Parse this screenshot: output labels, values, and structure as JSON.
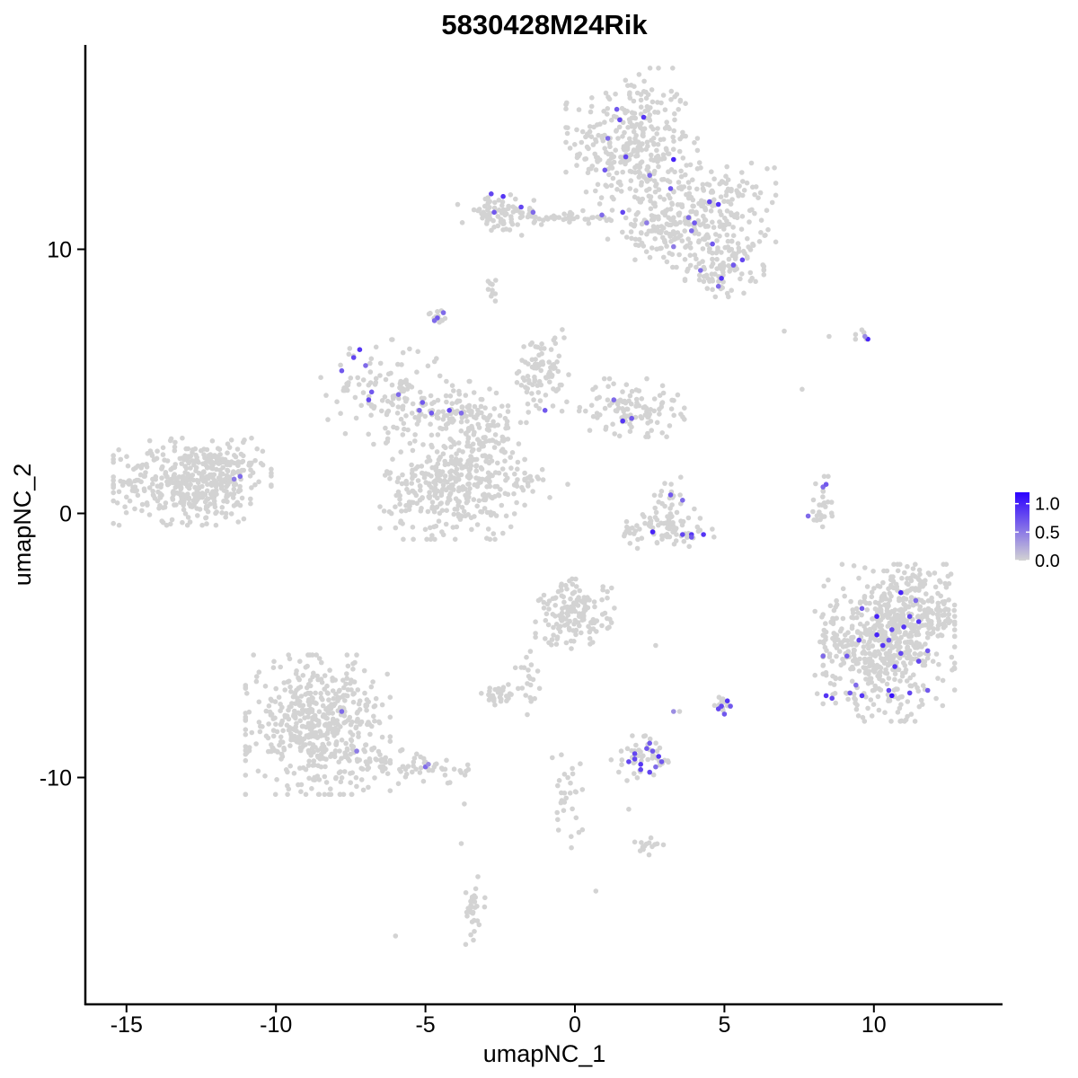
{
  "chart_data": {
    "type": "scatter",
    "title": "5830428M24Rik",
    "xlabel": "umapNC_1",
    "ylabel": "umapNC_2",
    "xlim": [
      -16.5,
      14.5
    ],
    "ylim": [
      -18.5,
      17.8
    ],
    "x_ticks": [
      -15,
      -10,
      -5,
      0,
      5,
      10
    ],
    "y_ticks": [
      -10,
      0,
      10
    ],
    "x_tick_labels": [
      "-15",
      "-10",
      "-5",
      "0",
      "5",
      "10"
    ],
    "y_tick_labels": [
      "-10",
      "0",
      "10"
    ],
    "grid": false,
    "color_scale": {
      "low_color": "#d3d3d3",
      "high_color": "#2b00ff",
      "min": 0.0,
      "max": 1.2,
      "ticks": [
        0.0,
        0.5,
        1.0
      ],
      "tick_labels": [
        "0.0",
        "0.5",
        "1.0"
      ],
      "legend_position": "right"
    },
    "clusters": [
      {
        "cx": 1.9,
        "cy": 14.0,
        "sx": 1.0,
        "sy": 1.3,
        "n": 320
      },
      {
        "cx": 4.3,
        "cy": 11.3,
        "sx": 1.1,
        "sy": 0.9,
        "n": 260
      },
      {
        "cx": 5.0,
        "cy": 9.3,
        "sx": 0.6,
        "sy": 0.5,
        "n": 90
      },
      {
        "cx": -2.6,
        "cy": 11.3,
        "sx": 0.6,
        "sy": 0.35,
        "n": 70
      },
      {
        "cx": -0.5,
        "cy": 11.2,
        "sx": 0.9,
        "sy": 0.12,
        "n": 45
      },
      {
        "cx": 2.6,
        "cy": 10.6,
        "sx": 0.7,
        "sy": 0.5,
        "n": 60
      },
      {
        "cx": -2.8,
        "cy": 8.7,
        "sx": 0.15,
        "sy": 0.3,
        "n": 10
      },
      {
        "cx": -4.6,
        "cy": 7.4,
        "sx": 0.15,
        "sy": 0.15,
        "n": 14
      },
      {
        "cx": -12.8,
        "cy": 1.2,
        "sx": 1.2,
        "sy": 0.75,
        "n": 420
      },
      {
        "cx": -11.6,
        "cy": 1.9,
        "sx": 0.5,
        "sy": 0.4,
        "n": 60
      },
      {
        "cx": -6.3,
        "cy": 4.6,
        "sx": 1.0,
        "sy": 0.9,
        "n": 120
      },
      {
        "cx": -4.0,
        "cy": 3.9,
        "sx": 0.8,
        "sy": 0.5,
        "n": 80
      },
      {
        "cx": -1.1,
        "cy": 5.2,
        "sx": 0.45,
        "sy": 0.8,
        "n": 90
      },
      {
        "cx": 1.9,
        "cy": 4.0,
        "sx": 0.8,
        "sy": 0.5,
        "n": 110
      },
      {
        "cx": -3.2,
        "cy": 3.0,
        "sx": 0.6,
        "sy": 0.6,
        "n": 90
      },
      {
        "cx": -4.1,
        "cy": 1.0,
        "sx": 1.1,
        "sy": 0.9,
        "n": 350
      },
      {
        "cx": -1.6,
        "cy": 1.2,
        "sx": 0.8,
        "sy": 0.3,
        "n": 25
      },
      {
        "cx": 3.0,
        "cy": -0.6,
        "sx": 0.75,
        "sy": 0.35,
        "n": 80
      },
      {
        "cx": 3.1,
        "cy": 0.5,
        "sx": 0.2,
        "sy": 0.4,
        "n": 25
      },
      {
        "cx": 8.2,
        "cy": 0.3,
        "sx": 0.2,
        "sy": 0.5,
        "n": 25
      },
      {
        "cx": 10.5,
        "cy": -4.9,
        "sx": 1.0,
        "sy": 1.35,
        "n": 520
      },
      {
        "cx": 8.8,
        "cy": -5.2,
        "sx": 0.35,
        "sy": 0.9,
        "n": 70
      },
      {
        "cx": 11.6,
        "cy": -3.8,
        "sx": 0.6,
        "sy": 0.7,
        "n": 120
      },
      {
        "cx": -8.6,
        "cy": -8.0,
        "sx": 1.1,
        "sy": 1.2,
        "n": 520
      },
      {
        "cx": -5.5,
        "cy": -9.6,
        "sx": 1.0,
        "sy": 0.35,
        "n": 70
      },
      {
        "cx": 0.0,
        "cy": -3.8,
        "sx": 0.6,
        "sy": 0.6,
        "n": 160
      },
      {
        "cx": -1.6,
        "cy": -6.3,
        "sx": 0.2,
        "sy": 0.6,
        "n": 20
      },
      {
        "cx": -2.5,
        "cy": -6.9,
        "sx": 0.3,
        "sy": 0.2,
        "n": 30
      },
      {
        "cx": 2.2,
        "cy": -9.3,
        "sx": 0.45,
        "sy": 0.4,
        "n": 45
      },
      {
        "cx": 5.0,
        "cy": -7.2,
        "sx": 0.15,
        "sy": 0.15,
        "n": 10
      },
      {
        "cx": -0.3,
        "cy": -10.9,
        "sx": 0.25,
        "sy": 0.8,
        "n": 30
      },
      {
        "cx": 2.3,
        "cy": -12.6,
        "sx": 0.3,
        "sy": 0.15,
        "n": 15
      },
      {
        "cx": -3.4,
        "cy": -15.0,
        "sx": 0.2,
        "sy": 0.6,
        "n": 30
      },
      {
        "cx": 9.6,
        "cy": 6.7,
        "sx": 0.15,
        "sy": 0.15,
        "n": 5
      }
    ],
    "singletons": [
      [
        7.0,
        6.9
      ],
      [
        8.5,
        6.7
      ],
      [
        7.6,
        4.7
      ],
      [
        -3.8,
        -12.5
      ],
      [
        -6.0,
        -16.0
      ],
      [
        0.7,
        -14.3
      ],
      [
        1.8,
        -11.2
      ],
      [
        -3.7,
        -11.0
      ],
      [
        2.7,
        -5.0
      ],
      [
        3.5,
        -7.5
      ]
    ],
    "expressing_points": [
      [
        1.4,
        15.3,
        0.7
      ],
      [
        1.5,
        14.9,
        0.8
      ],
      [
        1.1,
        14.2,
        0.6
      ],
      [
        2.3,
        15.0,
        0.9
      ],
      [
        1.7,
        13.5,
        0.8
      ],
      [
        3.3,
        13.4,
        1.0
      ],
      [
        1.0,
        13.0,
        0.7
      ],
      [
        2.5,
        12.8,
        0.6
      ],
      [
        3.2,
        12.3,
        0.7
      ],
      [
        4.5,
        11.8,
        0.8
      ],
      [
        4.8,
        11.7,
        0.9
      ],
      [
        3.8,
        11.2,
        0.6
      ],
      [
        4.0,
        11.0,
        0.7
      ],
      [
        0.9,
        11.3,
        0.6
      ],
      [
        1.6,
        11.4,
        0.8
      ],
      [
        2.4,
        11.0,
        0.5
      ],
      [
        4.6,
        10.2,
        0.7
      ],
      [
        5.6,
        9.6,
        0.8
      ],
      [
        5.3,
        9.4,
        0.7
      ],
      [
        4.9,
        8.9,
        0.9
      ],
      [
        4.8,
        8.6,
        0.6
      ],
      [
        4.2,
        9.2,
        0.6
      ],
      [
        3.3,
        10.1,
        0.5
      ],
      [
        3.9,
        10.7,
        0.6
      ],
      [
        -2.8,
        12.1,
        0.8
      ],
      [
        -2.4,
        12.0,
        0.9
      ],
      [
        -2.7,
        11.4,
        0.7
      ],
      [
        -1.8,
        11.6,
        0.8
      ],
      [
        -1.4,
        11.4,
        0.6
      ],
      [
        -4.6,
        7.4,
        0.7
      ],
      [
        -4.4,
        7.6,
        0.6
      ],
      [
        -4.7,
        7.3,
        0.6
      ],
      [
        -7.2,
        6.2,
        0.9
      ],
      [
        -7.4,
        5.9,
        0.8
      ],
      [
        -7.8,
        5.4,
        0.7
      ],
      [
        -7.0,
        5.6,
        0.6
      ],
      [
        -6.8,
        4.6,
        0.7
      ],
      [
        -6.9,
        4.3,
        0.8
      ],
      [
        -5.9,
        4.5,
        0.6
      ],
      [
        -5.1,
        4.2,
        0.7
      ],
      [
        -5.2,
        3.9,
        0.6
      ],
      [
        -4.8,
        3.8,
        0.7
      ],
      [
        -4.2,
        3.9,
        0.8
      ],
      [
        -3.8,
        3.8,
        0.6
      ],
      [
        -1.0,
        3.9,
        0.7
      ],
      [
        1.3,
        4.3,
        0.6
      ],
      [
        1.6,
        3.5,
        0.9
      ],
      [
        1.9,
        3.6,
        0.7
      ],
      [
        -11.4,
        1.3,
        0.5
      ],
      [
        -11.2,
        1.4,
        0.6
      ],
      [
        3.2,
        0.7,
        0.7
      ],
      [
        3.6,
        0.5,
        0.6
      ],
      [
        2.6,
        -0.7,
        1.0
      ],
      [
        3.6,
        -0.8,
        0.8
      ],
      [
        3.9,
        -0.8,
        0.9
      ],
      [
        4.3,
        -0.8,
        0.9
      ],
      [
        3.9,
        -0.9,
        0.7
      ],
      [
        8.3,
        1.0,
        0.6
      ],
      [
        8.4,
        1.1,
        0.7
      ],
      [
        7.8,
        -0.1,
        0.6
      ],
      [
        9.8,
        6.6,
        1.0
      ],
      [
        9.7,
        6.7,
        0.4
      ],
      [
        9.6,
        -3.6,
        0.7
      ],
      [
        10.1,
        -3.9,
        1.0
      ],
      [
        10.9,
        -3.0,
        1.0
      ],
      [
        11.2,
        -3.9,
        0.8
      ],
      [
        11.0,
        -4.3,
        0.9
      ],
      [
        10.6,
        -4.4,
        0.8
      ],
      [
        10.1,
        -4.6,
        1.0
      ],
      [
        9.5,
        -4.8,
        0.8
      ],
      [
        10.3,
        -5.0,
        0.9
      ],
      [
        11.5,
        -4.1,
        0.9
      ],
      [
        10.9,
        -5.3,
        0.8
      ],
      [
        10.5,
        -4.8,
        0.7
      ],
      [
        11.4,
        -3.3,
        0.6
      ],
      [
        9.1,
        -5.4,
        0.7
      ],
      [
        10.7,
        -5.8,
        0.9
      ],
      [
        11.5,
        -5.6,
        0.8
      ],
      [
        11.8,
        -5.2,
        0.7
      ],
      [
        9.4,
        -6.5,
        0.6
      ],
      [
        9.2,
        -6.8,
        0.7
      ],
      [
        8.4,
        -6.9,
        0.9
      ],
      [
        8.6,
        -7.0,
        0.8
      ],
      [
        9.6,
        -6.9,
        0.9
      ],
      [
        10.5,
        -6.7,
        0.8
      ],
      [
        10.6,
        -6.9,
        1.1
      ],
      [
        11.2,
        -6.8,
        0.8
      ],
      [
        11.8,
        -6.7,
        0.7
      ],
      [
        8.3,
        -5.4,
        0.6
      ],
      [
        4.9,
        -7.3,
        0.8
      ],
      [
        5.1,
        -7.1,
        0.9
      ],
      [
        5.0,
        -7.6,
        0.7
      ],
      [
        4.8,
        -7.4,
        0.8
      ],
      [
        5.2,
        -7.3,
        0.7
      ],
      [
        2.0,
        -9.3,
        0.8
      ],
      [
        2.2,
        -9.5,
        0.9
      ],
      [
        2.4,
        -8.9,
        0.7
      ],
      [
        2.5,
        -9.8,
        0.8
      ],
      [
        2.8,
        -9.2,
        0.9
      ],
      [
        1.8,
        -9.4,
        0.8
      ],
      [
        2.6,
        -9.0,
        0.7
      ],
      [
        2.2,
        -9.7,
        0.8
      ],
      [
        2.7,
        -9.6,
        0.6
      ],
      [
        2.9,
        -9.4,
        0.7
      ],
      [
        2.0,
        -9.1,
        0.8
      ],
      [
        2.5,
        -8.7,
        0.7
      ],
      [
        -7.8,
        -7.5,
        0.6
      ],
      [
        -7.3,
        -9.0,
        0.5
      ],
      [
        -5.0,
        -9.6,
        0.6
      ],
      [
        -4.9,
        -9.5,
        0.4
      ],
      [
        3.3,
        -7.5,
        0.4
      ]
    ]
  }
}
